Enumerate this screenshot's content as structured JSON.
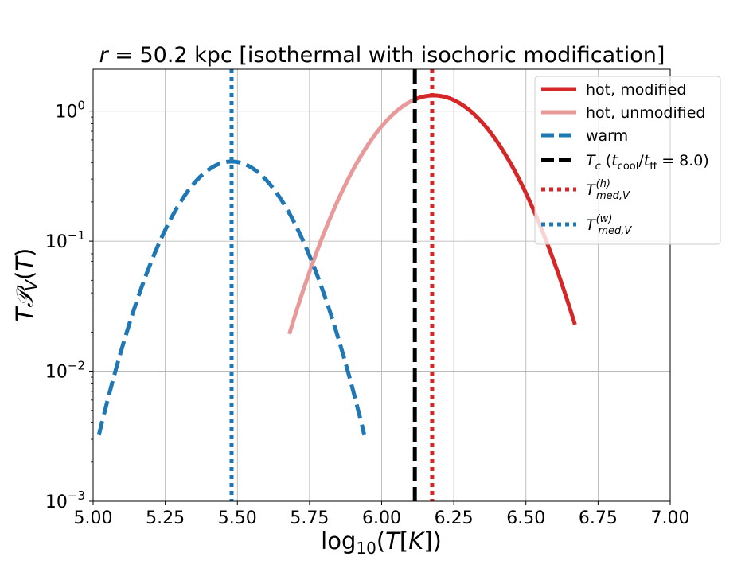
{
  "chart_data": {
    "type": "line",
    "title": "r = 50.2 kpc [isothermal with isochoric modification]",
    "xlabel": "log10(T[K])",
    "ylabel": "T𝒫V(T)",
    "xlim": [
      5.0,
      7.0
    ],
    "ylim": [
      0.001,
      2.1
    ],
    "yscale": "log",
    "grid": true,
    "legend_position": "top-right",
    "x_ticks": [
      "5.00",
      "5.25",
      "5.50",
      "5.75",
      "6.00",
      "6.25",
      "6.50",
      "6.75",
      "7.00"
    ],
    "y_ticks": [
      {
        "base": "10",
        "exp": "0",
        "value": 1
      },
      {
        "base": "10",
        "exp": "−1",
        "value": 0.1
      },
      {
        "base": "10",
        "exp": "−2",
        "value": 0.01
      },
      {
        "base": "10",
        "exp": "−3",
        "value": 0.001
      }
    ],
    "series": [
      {
        "name": "hot, modified",
        "style": "solid",
        "color": "#d62728",
        "curve": {
          "mu": 6.18,
          "sigma": 0.172,
          "peak": 1.32,
          "x_from": 6.115,
          "x_to": 6.67
        }
      },
      {
        "name": "hot, unmodified",
        "style": "solid",
        "color": "#e8999a",
        "curve": {
          "mu": 6.18,
          "sigma": 0.172,
          "peak": 1.32,
          "x_from": 5.68,
          "x_to": 6.115
        }
      },
      {
        "name": "warm",
        "style": "dashed",
        "color": "#1f77b4",
        "curve": {
          "mu": 5.48,
          "sigma": 0.1478,
          "peak": 0.41,
          "x_from": 5.02,
          "x_to": 5.94
        }
      },
      {
        "name": "T_c (t_cool/t_ff = 8.0)",
        "style": "dashed-vertical",
        "color": "#000000",
        "x": 6.115
      },
      {
        "name": "T_med,V^(h)",
        "style": "dotted-vertical",
        "color": "#d62728",
        "x": 6.175
      },
      {
        "name": "T_med,V^(w)",
        "style": "dotted-vertical",
        "color": "#1f77b4",
        "x": 5.48
      }
    ]
  }
}
